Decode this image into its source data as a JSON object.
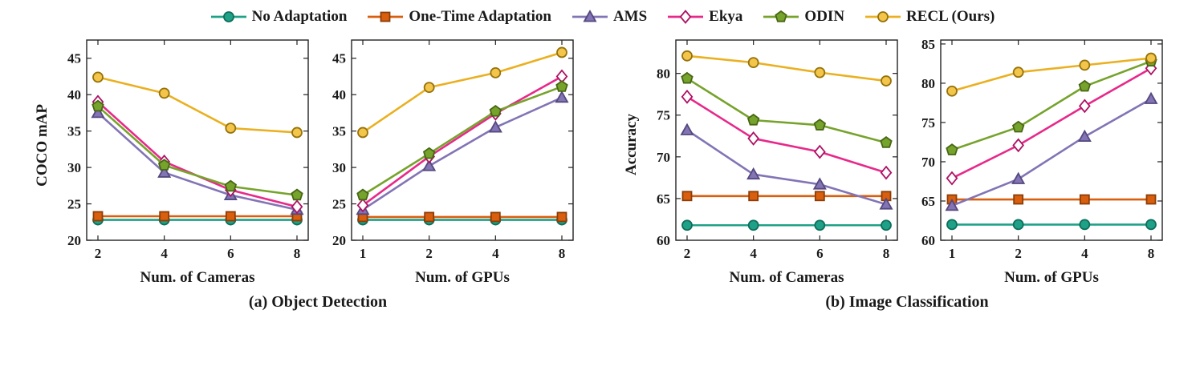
{
  "legend": {
    "items": [
      {
        "label": "No Adaptation",
        "color": "#1FA187",
        "stroke": "#0D6E5A",
        "fill": "#1FA187",
        "marker": "circle"
      },
      {
        "label": "One-Time Adaptation",
        "color": "#D95F0E",
        "stroke": "#8C3D08",
        "fill": "#D95F0E",
        "marker": "square"
      },
      {
        "label": "AMS",
        "color": "#8274B5",
        "stroke": "#55487E",
        "fill": "#8274B5",
        "marker": "triangle"
      },
      {
        "label": "Ekya",
        "color": "#E7298A",
        "stroke": "#AC1263",
        "fill": "#FFFFFF",
        "marker": "diamond"
      },
      {
        "label": "ODIN",
        "color": "#76A32C",
        "stroke": "#486614",
        "fill": "#76A32C",
        "marker": "pentagon"
      },
      {
        "label": "RECL (Ours)",
        "color": "#EAB020",
        "stroke": "#96720A",
        "fill": "#F3C54A",
        "marker": "circle"
      }
    ]
  },
  "figure": {
    "groups": [
      {
        "ylabel": "COCO mAP",
        "caption": "(a) Object Detection"
      },
      {
        "ylabel": "Accuracy",
        "caption": "(b) Image Classification"
      }
    ]
  },
  "chart_data": [
    {
      "type": "line",
      "panel": "Object Detection",
      "xlabel": "Num. of Cameras",
      "ylabel": "COCO mAP",
      "categories": [
        "2",
        "4",
        "6",
        "8"
      ],
      "ylim": [
        20,
        47.5
      ],
      "yticks": [
        20,
        25,
        30,
        35,
        40,
        45
      ],
      "grid": false,
      "series": [
        {
          "name": "No Adaptation",
          "values": [
            22.8,
            22.8,
            22.8,
            22.8
          ]
        },
        {
          "name": "One-Time Adaptation",
          "values": [
            23.3,
            23.3,
            23.3,
            23.3
          ]
        },
        {
          "name": "AMS",
          "values": [
            37.5,
            29.3,
            26.2,
            24.2
          ]
        },
        {
          "name": "Ekya",
          "values": [
            39.0,
            30.8,
            26.9,
            24.6
          ]
        },
        {
          "name": "ODIN",
          "values": [
            38.4,
            30.3,
            27.4,
            26.2
          ]
        },
        {
          "name": "RECL (Ours)",
          "values": [
            42.4,
            40.2,
            35.4,
            34.8
          ]
        }
      ]
    },
    {
      "type": "line",
      "panel": "Object Detection",
      "xlabel": "Num. of GPUs",
      "ylabel": "",
      "categories": [
        "1",
        "2",
        "4",
        "8"
      ],
      "ylim": [
        20,
        47.5
      ],
      "yticks": [
        20,
        25,
        30,
        35,
        40,
        45
      ],
      "grid": false,
      "series": [
        {
          "name": "No Adaptation",
          "values": [
            22.8,
            22.8,
            22.8,
            22.8
          ]
        },
        {
          "name": "One-Time Adaptation",
          "values": [
            23.2,
            23.2,
            23.2,
            23.2
          ]
        },
        {
          "name": "AMS",
          "values": [
            24.2,
            30.2,
            35.5,
            39.6
          ]
        },
        {
          "name": "Ekya",
          "values": [
            24.8,
            31.5,
            37.4,
            42.5
          ]
        },
        {
          "name": "ODIN",
          "values": [
            26.2,
            31.9,
            37.7,
            41.1
          ]
        },
        {
          "name": "RECL (Ours)",
          "values": [
            34.8,
            41.0,
            43.0,
            45.8
          ]
        }
      ]
    },
    {
      "type": "line",
      "panel": "Image Classification",
      "xlabel": "Num. of Cameras",
      "ylabel": "Accuracy",
      "categories": [
        "2",
        "4",
        "6",
        "8"
      ],
      "ylim": [
        60,
        84
      ],
      "yticks": [
        60,
        65,
        70,
        75,
        80
      ],
      "grid": false,
      "series": [
        {
          "name": "No Adaptation",
          "values": [
            61.8,
            61.8,
            61.8,
            61.8
          ]
        },
        {
          "name": "One-Time Adaptation",
          "values": [
            65.3,
            65.3,
            65.3,
            65.3
          ]
        },
        {
          "name": "AMS",
          "values": [
            73.2,
            67.9,
            66.7,
            64.3
          ]
        },
        {
          "name": "Ekya",
          "values": [
            77.2,
            72.2,
            70.6,
            68.1
          ]
        },
        {
          "name": "ODIN",
          "values": [
            79.4,
            74.4,
            73.8,
            71.7
          ]
        },
        {
          "name": "RECL (Ours)",
          "values": [
            82.1,
            81.3,
            80.1,
            79.1
          ]
        }
      ]
    },
    {
      "type": "line",
      "panel": "Image Classification",
      "xlabel": "Num. of GPUs",
      "ylabel": "",
      "categories": [
        "1",
        "2",
        "4",
        "8"
      ],
      "ylim": [
        60,
        85.5
      ],
      "yticks": [
        60,
        65,
        70,
        75,
        80,
        85
      ],
      "grid": false,
      "series": [
        {
          "name": "No Adaptation",
          "values": [
            62.0,
            62.0,
            62.0,
            62.0
          ]
        },
        {
          "name": "One-Time Adaptation",
          "values": [
            65.2,
            65.2,
            65.2,
            65.2
          ]
        },
        {
          "name": "AMS",
          "values": [
            64.4,
            67.8,
            73.2,
            78.0
          ]
        },
        {
          "name": "Ekya",
          "values": [
            67.9,
            72.1,
            77.1,
            81.9
          ]
        },
        {
          "name": "ODIN",
          "values": [
            71.5,
            74.4,
            79.6,
            82.8
          ]
        },
        {
          "name": "RECL (Ours)",
          "values": [
            79.0,
            81.4,
            82.3,
            83.2
          ]
        }
      ]
    }
  ]
}
